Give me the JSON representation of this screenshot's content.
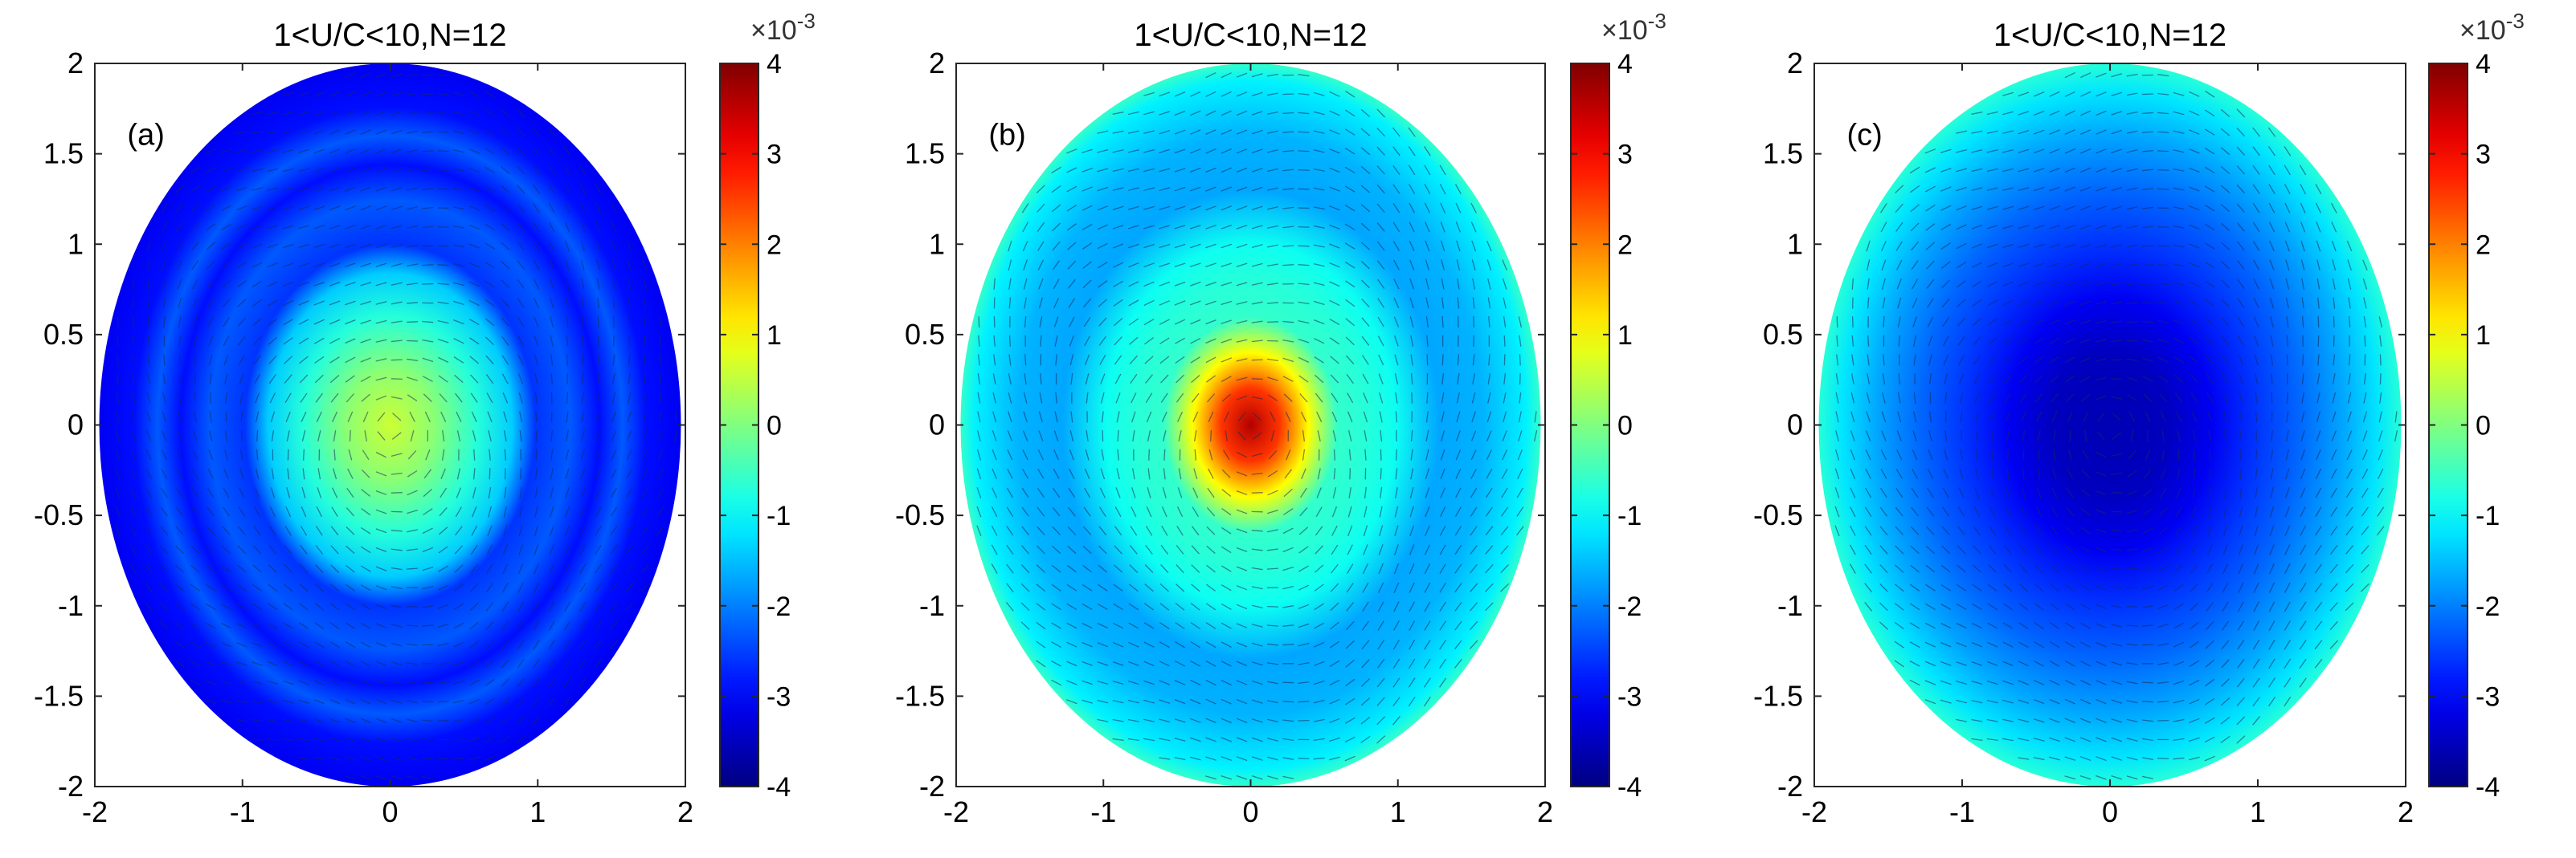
{
  "chart_data": [
    {
      "type": "heatmap",
      "panel_label": "(a)",
      "title": "1<U/C<10,N=12",
      "xlim": [
        -2,
        2
      ],
      "ylim": [
        -2,
        2
      ],
      "xticks": [
        -2,
        -1,
        0,
        1,
        2
      ],
      "yticks": [
        -2,
        -1.5,
        -1,
        -0.5,
        0,
        0.5,
        1,
        1.5,
        2
      ],
      "domain": {
        "shape": "ellipse",
        "x_semi_axis": 1.97,
        "y_semi_axis": 2.0
      },
      "vector_field": "quiver arrows overlaid",
      "colorbar": {
        "colormap": "jet",
        "range": [
          -4,
          4
        ],
        "ticks": [
          -4,
          -3,
          -2,
          -1,
          0,
          1,
          2,
          3,
          4
        ],
        "multiplier": "×10^-3"
      },
      "radial_profile": [
        {
          "r": 0.0,
          "value": 0.6
        },
        {
          "r": 0.15,
          "value": 0.1
        },
        {
          "r": 0.3,
          "value": -0.7
        },
        {
          "r": 0.42,
          "value": -1.4
        },
        {
          "r": 0.5,
          "value": -2.6
        },
        {
          "r": 0.62,
          "value": -2.3
        },
        {
          "r": 0.72,
          "value": -2.9
        },
        {
          "r": 0.8,
          "value": -2.3
        },
        {
          "r": 0.88,
          "value": -2.9
        },
        {
          "r": 1.0,
          "value": -3.1
        }
      ]
    },
    {
      "type": "heatmap",
      "panel_label": "(b)",
      "title": "1<U/C<10,N=12",
      "xlim": [
        -2,
        2
      ],
      "ylim": [
        -2,
        2
      ],
      "xticks": [
        -2,
        -1,
        0,
        1,
        2
      ],
      "yticks": [
        -2,
        -1.5,
        -1,
        -0.5,
        0,
        0.5,
        1,
        1.5,
        2
      ],
      "domain": {
        "shape": "ellipse",
        "x_semi_axis": 1.97,
        "y_semi_axis": 2.0
      },
      "vector_field": "quiver arrows overlaid",
      "colorbar": {
        "colormap": "jet",
        "range": [
          -4,
          4
        ],
        "ticks": [
          -4,
          -3,
          -2,
          -1,
          0,
          1,
          2,
          3,
          4
        ],
        "multiplier": "×10^-3"
      },
      "radial_profile": [
        {
          "r": 0.0,
          "value": 3.6
        },
        {
          "r": 0.1,
          "value": 2.6
        },
        {
          "r": 0.2,
          "value": 1.0
        },
        {
          "r": 0.3,
          "value": -0.6
        },
        {
          "r": 0.4,
          "value": -0.7
        },
        {
          "r": 0.5,
          "value": -0.9
        },
        {
          "r": 0.65,
          "value": -1.7
        },
        {
          "r": 0.8,
          "value": -1.6
        },
        {
          "r": 0.95,
          "value": -1.1
        },
        {
          "r": 1.0,
          "value": -0.6
        }
      ]
    },
    {
      "type": "heatmap",
      "panel_label": "(c)",
      "title": "1<U/C<10,N=12",
      "xlim": [
        -2,
        2
      ],
      "ylim": [
        -2,
        2
      ],
      "xticks": [
        -2,
        -1,
        0,
        1,
        2
      ],
      "yticks": [
        -2,
        -1.5,
        -1,
        -0.5,
        0,
        0.5,
        1,
        1.5,
        2
      ],
      "domain": {
        "shape": "ellipse",
        "x_semi_axis": 1.97,
        "y_semi_axis": 2.0
      },
      "vector_field": "quiver arrows overlaid",
      "colorbar": {
        "colormap": "jet",
        "range": [
          -4,
          4
        ],
        "ticks": [
          -4,
          -3,
          -2,
          -1,
          0,
          1,
          2,
          3,
          4
        ],
        "multiplier": "×10^-3"
      },
      "radial_profile": [
        {
          "r": 0.0,
          "value": -3.6
        },
        {
          "r": 0.2,
          "value": -3.5
        },
        {
          "r": 0.35,
          "value": -3.1
        },
        {
          "r": 0.5,
          "value": -2.6
        },
        {
          "r": 0.65,
          "value": -2.2
        },
        {
          "r": 0.8,
          "value": -1.7
        },
        {
          "r": 0.92,
          "value": -1.2
        },
        {
          "r": 1.0,
          "value": -0.7
        }
      ]
    }
  ]
}
